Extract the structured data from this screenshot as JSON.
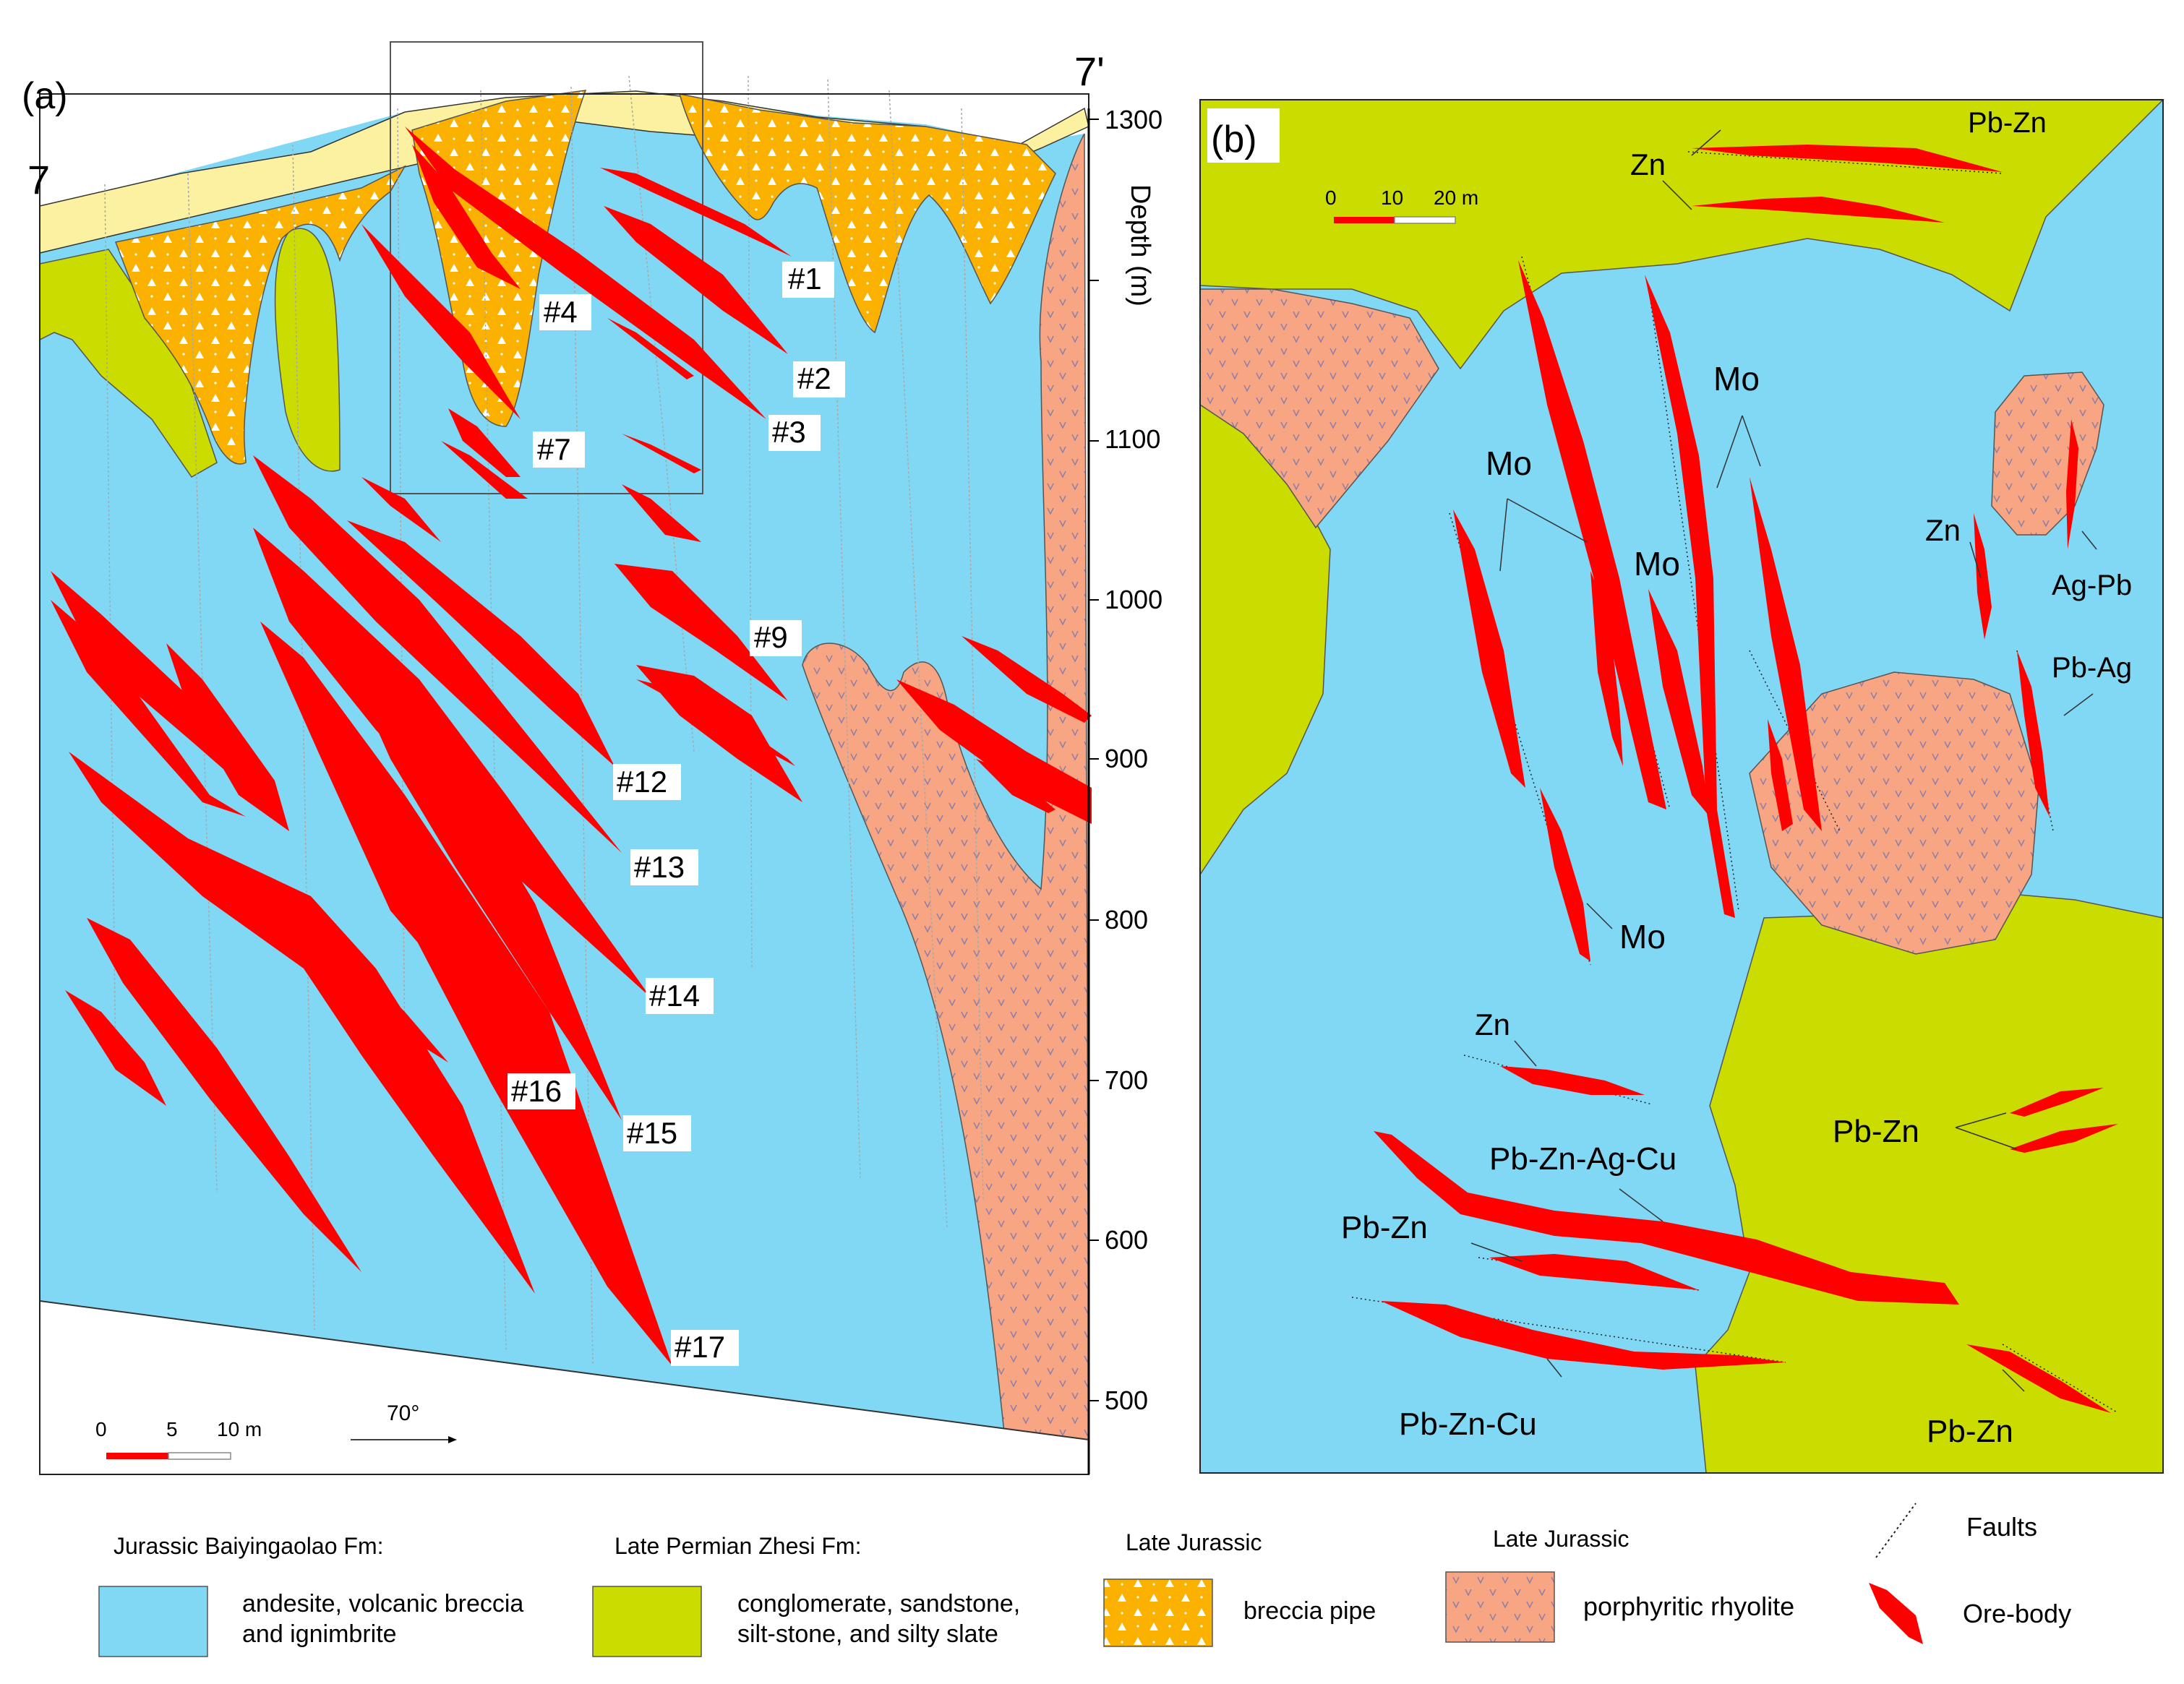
{
  "panel_a": {
    "label": "(a)",
    "section_start": "7",
    "section_end": "7'",
    "depth_axis": {
      "title": "Depth (m)",
      "ticks": [
        "1300",
        "1100",
        "1000",
        "900",
        "800",
        "700",
        "600",
        "500"
      ]
    },
    "ore_bodies": [
      "#1",
      "#2",
      "#3",
      "#4",
      "#7",
      "#9",
      "#12",
      "#13",
      "#14",
      "#15",
      "#16",
      "#17"
    ],
    "scale_bar": {
      "ticks": [
        "0",
        "5",
        "10 m"
      ]
    },
    "direction": "70°"
  },
  "panel_b": {
    "label": "(b)",
    "scale_bar": {
      "ticks": [
        "0",
        "10",
        "20 m"
      ]
    },
    "mineral_labels": [
      "Pb-Zn",
      "Zn",
      "Mo",
      "Mo",
      "Mo",
      "Mo",
      "Zn",
      "Ag-Pb",
      "Pb-Ag",
      "Zn",
      "Pb-Zn-Ag-Cu",
      "Pb-Zn",
      "Pb-Zn",
      "Pb-Zn-Cu",
      "Pb-Zn"
    ]
  },
  "legend": {
    "items": [
      {
        "heading": "Jurassic  Baiyingaolao Fm:",
        "text": [
          "andesite, volcanic breccia",
          "and ignimbrite"
        ],
        "color": "#80d8f5"
      },
      {
        "heading": "Late  Permian Zhesi Fm:",
        "text": [
          "conglomerate, sandstone,",
          "silt-stone, and silty slate"
        ],
        "color": "#cbdc00"
      },
      {
        "heading": "Late Jurassic",
        "text": [
          "breccia pipe"
        ],
        "color": "#fbb100"
      },
      {
        "heading": "Late Jurassic",
        "text": [
          "porphyritic rhyolite"
        ],
        "color": "#f7a582"
      },
      {
        "heading": "",
        "text": [
          "Faults"
        ],
        "color": "#000000"
      },
      {
        "heading": "",
        "text": [
          "Ore-body"
        ],
        "color": "#ff0000"
      }
    ]
  },
  "colors": {
    "andesite": "#80d8f5",
    "zhesi": "#cbdc00",
    "breccia": "#fbb100",
    "rhyolite": "#f7a582",
    "ore": "#ff0000",
    "soil": "#fbf1a0"
  }
}
